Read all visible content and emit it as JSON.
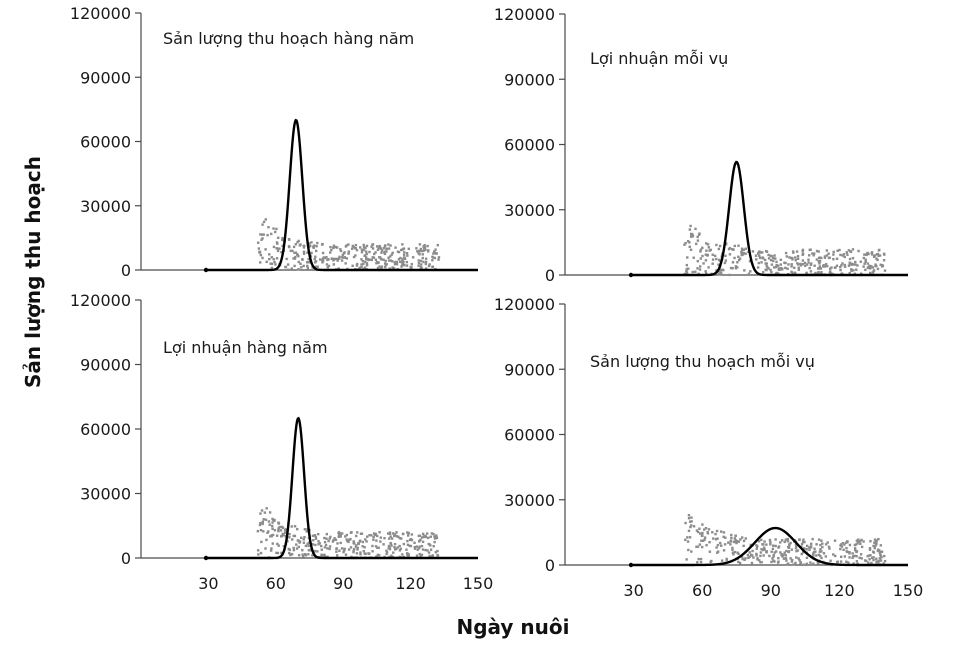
{
  "figure": {
    "ylabel": "Sản lượng thu hoạch",
    "xlabel": "Ngày nuôi",
    "colors": {
      "curve": "#000000",
      "scatter": "#8c8c8c",
      "axis": "#4a4a4a"
    }
  },
  "chart_data": [
    {
      "type": "line",
      "title": "Sản lượng thu hoạch hàng năm",
      "xlim": [
        0,
        150
      ],
      "ylim": [
        0,
        120000
      ],
      "xticks": [
        30,
        60,
        90,
        120,
        150
      ],
      "yticks": [
        0,
        30000,
        60000,
        90000,
        120000
      ],
      "curve": {
        "peak_x": 69,
        "peak_y": 70000,
        "width_x": 2.8
      },
      "scatter": {
        "x_range": [
          52,
          133
        ],
        "y_range": [
          0,
          27000
        ]
      }
    },
    {
      "type": "line",
      "title": "Lợi nhuận mỗi vụ",
      "xlim": [
        0,
        150
      ],
      "ylim": [
        0,
        120000
      ],
      "xticks": [
        30,
        60,
        90,
        120,
        150
      ],
      "yticks": [
        0,
        30000,
        60000,
        90000,
        120000
      ],
      "curve": {
        "peak_x": 75,
        "peak_y": 52000,
        "width_x": 3.2
      },
      "scatter": {
        "x_range": [
          52,
          140
        ],
        "y_range": [
          0,
          27000
        ]
      }
    },
    {
      "type": "line",
      "title": "Lợi nhuận hàng năm",
      "xlim": [
        0,
        150
      ],
      "ylim": [
        0,
        120000
      ],
      "xticks": [
        30,
        60,
        90,
        120,
        150
      ],
      "yticks": [
        0,
        30000,
        60000,
        90000,
        120000
      ],
      "curve": {
        "peak_x": 70,
        "peak_y": 65000,
        "width_x": 2.6
      },
      "scatter": {
        "x_range": [
          52,
          133
        ],
        "y_range": [
          0,
          27000
        ]
      }
    },
    {
      "type": "line",
      "title": "Sản lượng thu hoạch mỗi vụ",
      "xlim": [
        0,
        150
      ],
      "ylim": [
        0,
        120000
      ],
      "xticks": [
        30,
        60,
        90,
        120,
        150
      ],
      "yticks": [
        0,
        30000,
        60000,
        90000,
        120000
      ],
      "curve": {
        "peak_x": 92,
        "peak_y": 17000,
        "width_x": 9
      },
      "scatter": {
        "x_range": [
          52,
          140
        ],
        "y_range": [
          0,
          27000
        ]
      }
    }
  ]
}
